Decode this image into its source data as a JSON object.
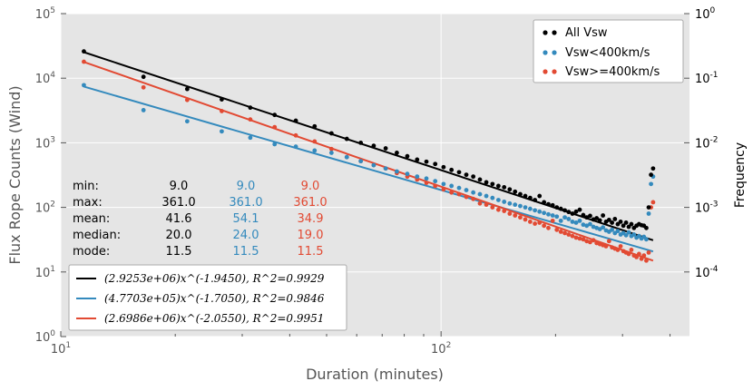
{
  "chart_data": {
    "type": "scatter",
    "xlabel": "Duration (minutes)",
    "ylabel": "Flux Rope Counts (Wind)",
    "y2label": "Frequency",
    "xscale": "log",
    "yscale": "log",
    "xlim": [
      10,
      450
    ],
    "ylim": [
      1,
      100000
    ],
    "y2lim": [
      1e-05,
      1
    ],
    "grid": true,
    "x_ticks": [
      10,
      100
    ],
    "x_tick_labels": [
      "10^1",
      "10^2"
    ],
    "y_ticks": [
      1,
      10,
      100,
      1000,
      10000,
      100000
    ],
    "y_tick_labels": [
      "10^0",
      "10^1",
      "10^2",
      "10^3",
      "10^4",
      "10^5"
    ],
    "y2_ticks": [
      0.0001,
      0.001,
      0.01,
      0.1,
      1
    ],
    "y2_tick_labels": [
      "10^-4",
      "10^-3",
      "10^-2",
      "10^-1",
      "10^0"
    ],
    "colors": {
      "all": "#000000",
      "low": "#348ABD",
      "high": "#E24A33"
    },
    "series": [
      {
        "name": "All Vsw",
        "color": "#000000",
        "key": "all",
        "x": [
          11.5,
          16.5,
          21.5,
          26.5,
          31.5,
          36.5,
          41.5,
          46.5,
          51.5,
          56.5,
          61.5,
          66.5,
          71.5,
          76.5,
          81.5,
          86.5,
          91.5,
          96.5,
          101.5,
          106.5,
          111.5,
          116.5,
          121.5,
          126.5,
          131.5,
          136.5,
          141.5,
          146.5,
          151.5,
          156.5,
          161.5,
          166.5,
          171.5,
          176.5,
          181.5,
          186.5,
          191.5,
          196.5,
          201.5,
          206.5,
          211.5,
          216.5,
          221.5,
          226.5,
          231.5,
          236.5,
          241.5,
          246.5,
          251.5,
          256.5,
          261.5,
          266.5,
          271.5,
          276.5,
          281.5,
          286.5,
          291.5,
          296.5,
          301.5,
          306.5,
          311.5,
          316.5,
          321.5,
          326.5,
          331.5,
          336.5,
          341.5,
          346.5,
          351.5,
          356.5,
          361.0
        ],
        "values": [
          26000,
          10500,
          6800,
          4700,
          3500,
          2700,
          2200,
          1800,
          1400,
          1150,
          1000,
          900,
          820,
          700,
          620,
          550,
          510,
          470,
          420,
          380,
          350,
          320,
          300,
          270,
          245,
          230,
          215,
          205,
          190,
          175,
          160,
          150,
          140,
          130,
          150,
          120,
          112,
          108,
          100,
          95,
          90,
          85,
          80,
          86,
          92,
          76,
          70,
          74,
          65,
          68,
          63,
          75,
          60,
          64,
          58,
          66,
          55,
          60,
          52,
          58,
          50,
          55,
          48,
          52,
          55,
          53,
          52,
          48,
          100,
          320,
          400
        ]
      },
      {
        "name": "Vsw<400km/s",
        "color": "#348ABD",
        "key": "low",
        "x": [
          11.5,
          16.5,
          21.5,
          26.5,
          31.5,
          36.5,
          41.5,
          46.5,
          51.5,
          56.5,
          61.5,
          66.5,
          71.5,
          76.5,
          81.5,
          86.5,
          91.5,
          96.5,
          101.5,
          106.5,
          111.5,
          116.5,
          121.5,
          126.5,
          131.5,
          136.5,
          141.5,
          146.5,
          151.5,
          156.5,
          161.5,
          166.5,
          171.5,
          176.5,
          181.5,
          186.5,
          191.5,
          196.5,
          201.5,
          206.5,
          211.5,
          216.5,
          221.5,
          226.5,
          231.5,
          236.5,
          241.5,
          246.5,
          251.5,
          256.5,
          261.5,
          266.5,
          271.5,
          276.5,
          281.5,
          286.5,
          291.5,
          296.5,
          301.5,
          306.5,
          311.5,
          316.5,
          321.5,
          326.5,
          331.5,
          336.5,
          341.5,
          346.5,
          351.5,
          356.5,
          361.0
        ],
        "values": [
          7800,
          3200,
          2150,
          1500,
          1200,
          950,
          870,
          760,
          700,
          600,
          520,
          450,
          400,
          360,
          330,
          300,
          280,
          255,
          230,
          215,
          200,
          185,
          170,
          160,
          150,
          140,
          130,
          122,
          115,
          110,
          105,
          100,
          95,
          90,
          86,
          82,
          78,
          75,
          72,
          62,
          70,
          66,
          60,
          58,
          62,
          54,
          52,
          55,
          50,
          48,
          46,
          49,
          44,
          42,
          45,
          40,
          43,
          38,
          40,
          37,
          41,
          36,
          38,
          34,
          36,
          33,
          35,
          32,
          80,
          230,
          300
        ]
      },
      {
        "name": "Vsw>=400km/s",
        "color": "#E24A33",
        "key": "high",
        "x": [
          11.5,
          16.5,
          21.5,
          26.5,
          31.5,
          36.5,
          41.5,
          46.5,
          51.5,
          56.5,
          61.5,
          66.5,
          71.5,
          76.5,
          81.5,
          86.5,
          91.5,
          96.5,
          101.5,
          106.5,
          111.5,
          116.5,
          121.5,
          126.5,
          131.5,
          136.5,
          141.5,
          146.5,
          151.5,
          156.5,
          161.5,
          166.5,
          171.5,
          176.5,
          181.5,
          186.5,
          191.5,
          196.5,
          201.5,
          206.5,
          211.5,
          216.5,
          221.5,
          226.5,
          231.5,
          236.5,
          241.5,
          246.5,
          251.5,
          256.5,
          261.5,
          266.5,
          271.5,
          276.5,
          281.5,
          286.5,
          291.5,
          296.5,
          301.5,
          306.5,
          311.5,
          316.5,
          321.5,
          326.5,
          331.5,
          336.5,
          341.5,
          346.5,
          351.5,
          356.5,
          361.0
        ],
        "values": [
          18000,
          7200,
          4600,
          3100,
          2300,
          1750,
          1300,
          1050,
          800,
          600,
          520,
          450,
          400,
          340,
          300,
          270,
          240,
          215,
          190,
          170,
          160,
          145,
          135,
          115,
          110,
          100,
          92,
          88,
          80,
          75,
          70,
          65,
          60,
          56,
          58,
          52,
          48,
          62,
          45,
          42,
          40,
          38,
          36,
          34,
          33,
          32,
          30,
          29,
          31,
          28,
          27,
          26,
          25,
          30,
          24,
          23,
          22,
          25,
          21,
          20,
          19,
          22,
          18,
          17,
          19,
          16,
          18,
          15,
          20,
          100,
          120
        ]
      }
    ],
    "fits": [
      {
        "key": "all",
        "color": "#000000",
        "A": 2925300,
        "b": -1.945,
        "label": "(2.9253e+06)x^(-1.9450), R^2=0.9929"
      },
      {
        "key": "low",
        "color": "#348ABD",
        "A": 477030,
        "b": -1.705,
        "label": "(4.7703e+05)x^(-1.7050), R^2=0.9846"
      },
      {
        "key": "high",
        "color": "#E24A33",
        "A": 2698600,
        "b": -2.055,
        "label": "(2.6986e+06)x^(-2.0550), R^2=0.9951"
      }
    ],
    "stats": {
      "labels": [
        "min:",
        "max:",
        "mean:",
        "median:",
        "mode:"
      ],
      "all": [
        "9.0",
        "361.0",
        "41.6",
        "20.0",
        "11.5"
      ],
      "low": [
        "9.0",
        "361.0",
        "54.1",
        "24.0",
        "11.5"
      ],
      "high": [
        "9.0",
        "361.0",
        "34.9",
        "19.0",
        "11.5"
      ]
    },
    "legend": {
      "placement": "top-right",
      "entries": [
        "All Vsw",
        "Vsw<400km/s",
        "Vsw>=400km/s"
      ]
    },
    "fit_legend": {
      "placement": "bottom-left"
    }
  }
}
